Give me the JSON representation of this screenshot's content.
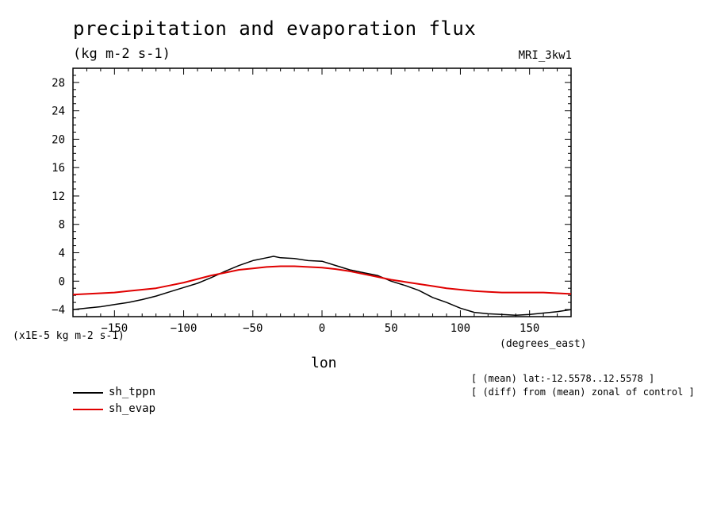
{
  "title": "precipitation and evaporation flux",
  "units": "(kg m-2 s-1)",
  "model": "MRI_3kw1",
  "scale_note": "(x1E-5 kg m-2 s-1)",
  "xunits": "(degrees_east)",
  "xlabel": "lon",
  "notes": [
    "[ (mean) lat:-12.5578..12.5578 ]",
    "[ (diff) from (mean) zonal of control ]"
  ],
  "chart_data": {
    "type": "line",
    "title": "precipitation and evaporation flux",
    "xlabel": "lon",
    "ylabel": "(kg m-2 s-1)",
    "xlim": [
      -180,
      180
    ],
    "ylim": [
      -5,
      30
    ],
    "xticks": [
      -150,
      -100,
      -50,
      0,
      50,
      100,
      150
    ],
    "yticks": [
      -4,
      0,
      4,
      8,
      12,
      16,
      20,
      24,
      28
    ],
    "grid": false,
    "legend_position": "bottom-left",
    "series": [
      {
        "name": "sh_tppn",
        "color": "#000000",
        "x": [
          -180,
          -170,
          -160,
          -150,
          -140,
          -130,
          -120,
          -110,
          -100,
          -90,
          -80,
          -70,
          -60,
          -50,
          -40,
          -35,
          -30,
          -20,
          -10,
          0,
          10,
          20,
          30,
          40,
          50,
          60,
          70,
          80,
          90,
          100,
          110,
          120,
          130,
          140,
          150,
          160,
          170,
          180
        ],
        "values": [
          -4.0,
          -3.8,
          -3.6,
          -3.3,
          -3.0,
          -2.6,
          -2.1,
          -1.5,
          -0.9,
          -0.3,
          0.5,
          1.4,
          2.2,
          2.9,
          3.3,
          3.5,
          3.3,
          3.2,
          2.9,
          2.8,
          2.2,
          1.6,
          1.2,
          0.8,
          0.0,
          -0.6,
          -1.3,
          -2.3,
          -3.0,
          -3.8,
          -4.4,
          -4.6,
          -4.7,
          -4.8,
          -4.7,
          -4.5,
          -4.3,
          -4.0
        ]
      },
      {
        "name": "sh_evap",
        "color": "#e00000",
        "x": [
          -180,
          -170,
          -160,
          -150,
          -140,
          -130,
          -120,
          -110,
          -100,
          -90,
          -80,
          -70,
          -60,
          -50,
          -40,
          -30,
          -20,
          -10,
          0,
          10,
          20,
          30,
          40,
          50,
          60,
          70,
          80,
          90,
          100,
          110,
          120,
          130,
          140,
          150,
          160,
          170,
          180
        ],
        "values": [
          -1.9,
          -1.8,
          -1.7,
          -1.6,
          -1.4,
          -1.2,
          -1.0,
          -0.6,
          -0.2,
          0.3,
          0.8,
          1.2,
          1.6,
          1.8,
          2.0,
          2.1,
          2.1,
          2.0,
          1.9,
          1.7,
          1.4,
          1.0,
          0.6,
          0.2,
          -0.1,
          -0.4,
          -0.7,
          -1.0,
          -1.2,
          -1.4,
          -1.5,
          -1.6,
          -1.6,
          -1.6,
          -1.6,
          -1.7,
          -1.8
        ]
      }
    ]
  }
}
